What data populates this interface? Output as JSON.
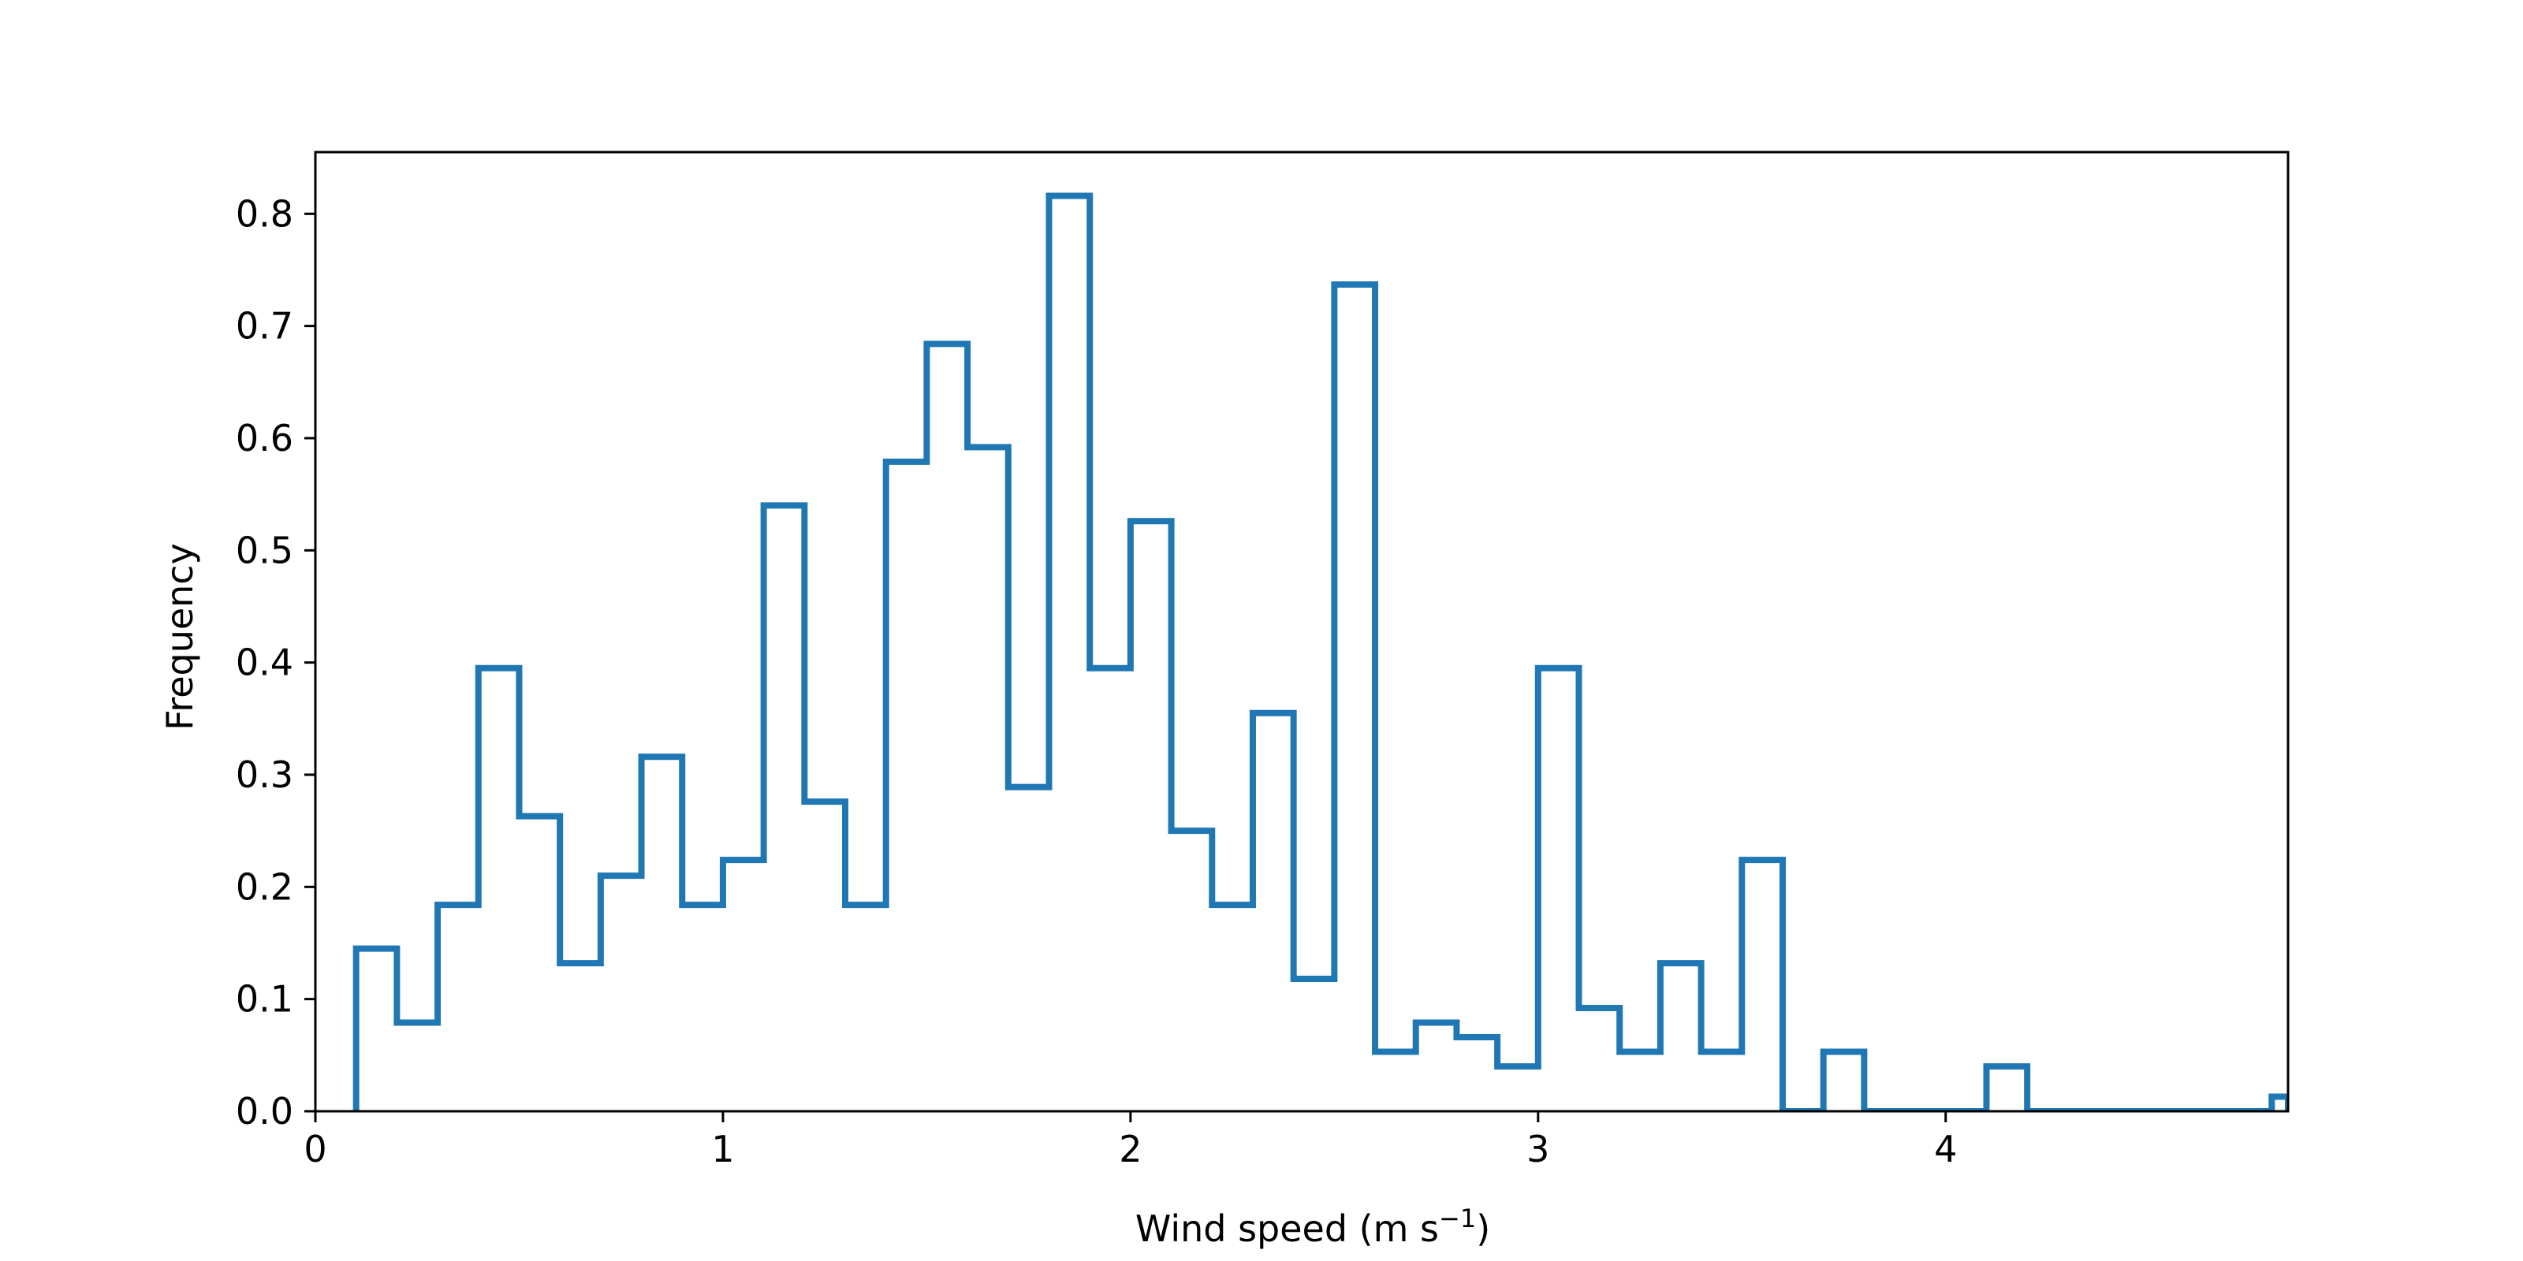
{
  "chart_data": {
    "type": "histogram",
    "histtype": "step",
    "xlabel": {
      "prefix": "Wind speed (m s",
      "superscript": "−1",
      "suffix": ")"
    },
    "ylabel": "Frequency",
    "xlim": [
      0,
      4.84
    ],
    "ylim": [
      0,
      0.855
    ],
    "xticks": [
      0,
      1,
      2,
      3,
      4
    ],
    "xtick_labels": [
      "0",
      "1",
      "2",
      "3",
      "4"
    ],
    "yticks": [
      0.0,
      0.1,
      0.2,
      0.3,
      0.4,
      0.5,
      0.6,
      0.7,
      0.8
    ],
    "ytick_labels": [
      "0.0",
      "0.1",
      "0.2",
      "0.3",
      "0.4",
      "0.5",
      "0.6",
      "0.7",
      "0.8"
    ],
    "grid": false,
    "line_color": "#1f77b4",
    "bin_edges": [
      0.1,
      0.2,
      0.3,
      0.4,
      0.5,
      0.6,
      0.7,
      0.8,
      0.9,
      1.0,
      1.1,
      1.2,
      1.3,
      1.4,
      1.5,
      1.6,
      1.7,
      1.8,
      1.9,
      2.0,
      2.1,
      2.2,
      2.3,
      2.4,
      2.5,
      2.6,
      2.7,
      2.8,
      2.9,
      3.0,
      3.1,
      3.2,
      3.3,
      3.4,
      3.5,
      3.6,
      3.7,
      3.8,
      3.9,
      4.0,
      4.1,
      4.2,
      4.3,
      4.4,
      4.5,
      4.6,
      4.7,
      4.8,
      4.84
    ],
    "counts": [
      0.145,
      0.079,
      0.184,
      0.395,
      0.263,
      0.132,
      0.21,
      0.316,
      0.184,
      0.224,
      0.54,
      0.276,
      0.184,
      0.579,
      0.684,
      0.592,
      0.289,
      0.816,
      0.395,
      0.526,
      0.25,
      0.184,
      0.355,
      0.118,
      0.737,
      0.053,
      0.079,
      0.066,
      0.04,
      0.395,
      0.092,
      0.053,
      0.132,
      0.053,
      0.224,
      0.0,
      0.053,
      0.0,
      0.0,
      0.0,
      0.04,
      0.0,
      0.0,
      0.0,
      0.0,
      0.0,
      0.0,
      0.013
    ]
  }
}
